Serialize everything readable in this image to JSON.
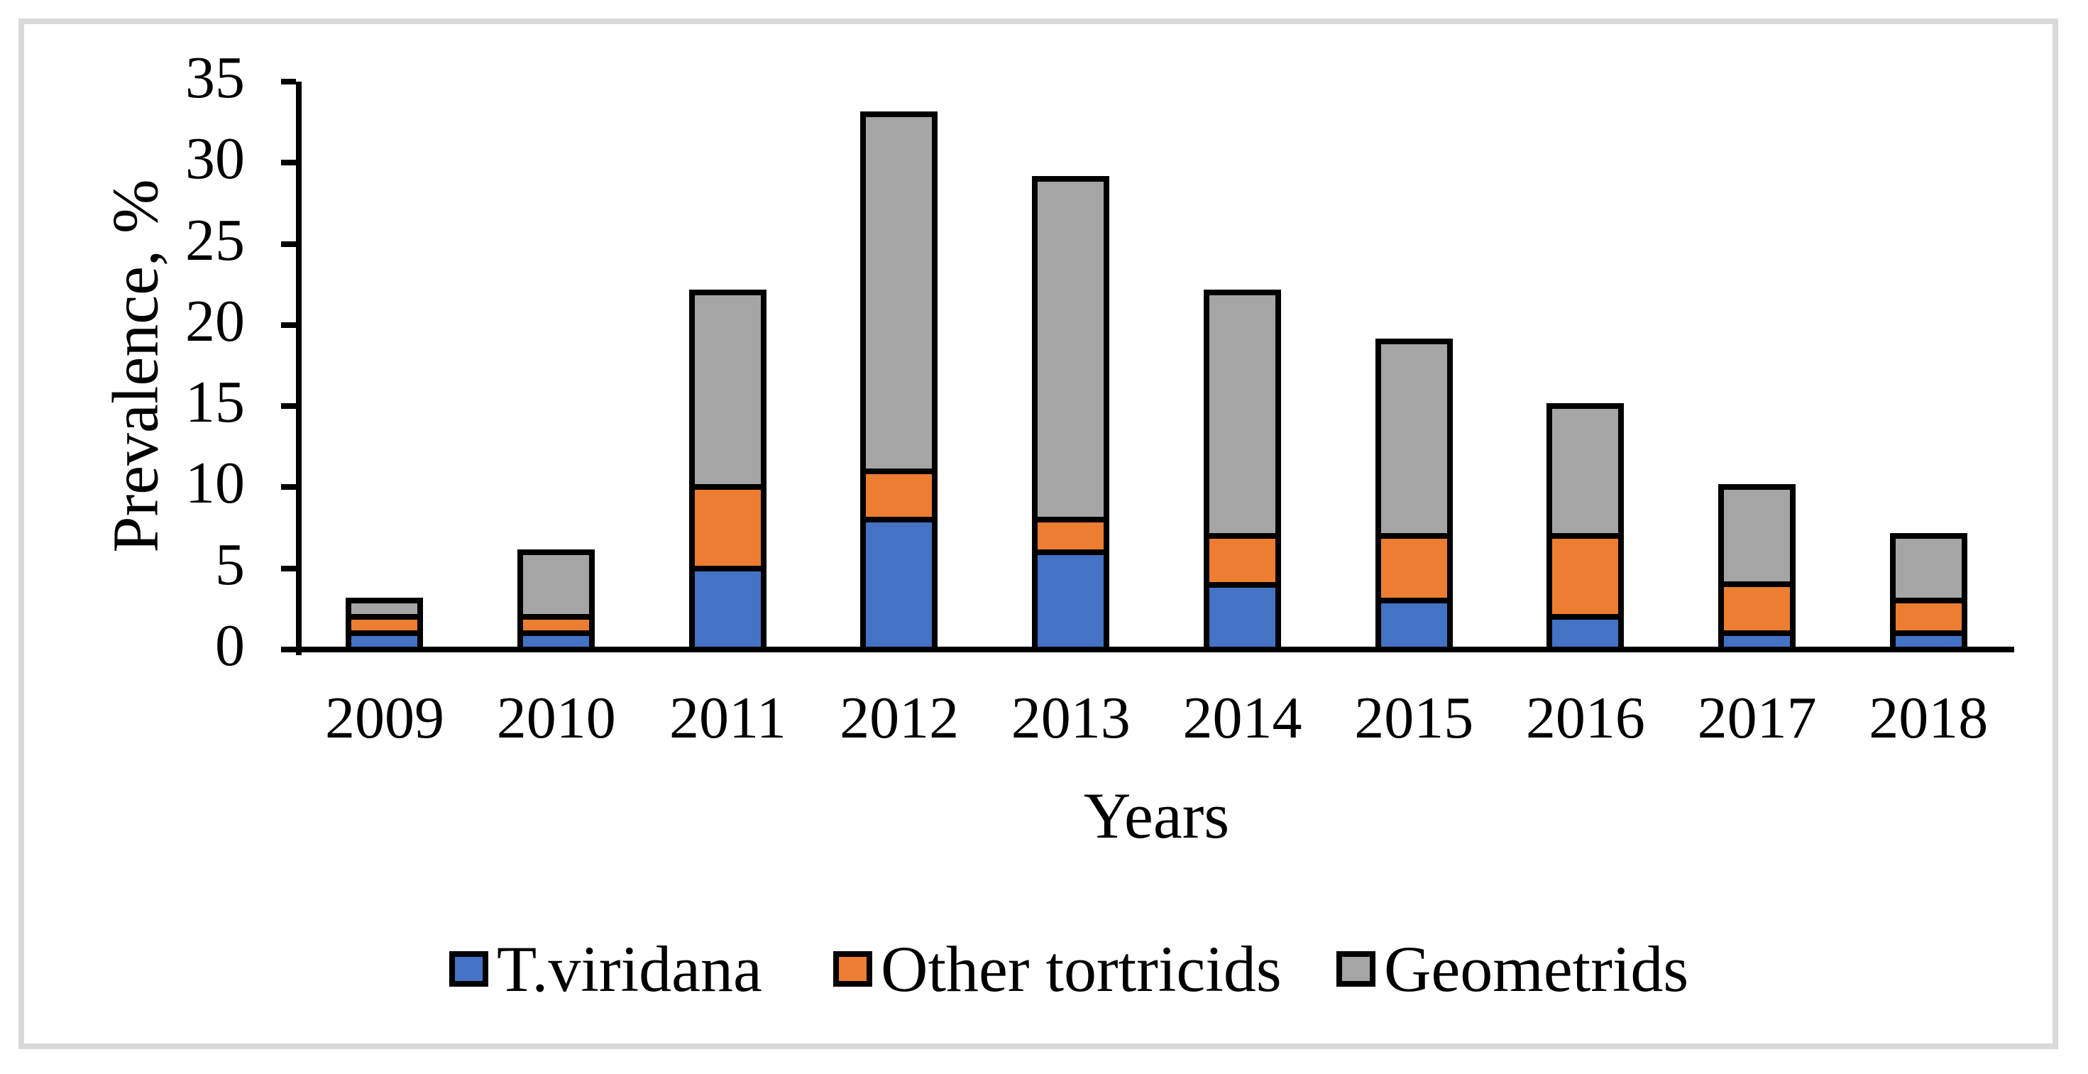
{
  "figure": {
    "background": "#FFFFFF",
    "frame_color": "#D9D9D9"
  },
  "chart_data": {
    "type": "bar",
    "stacked": true,
    "title": "",
    "categories": [
      "2009",
      "2010",
      "2011",
      "2012",
      "2013",
      "2014",
      "2015",
      "2016",
      "2017",
      "2018"
    ],
    "series": [
      {
        "name": "T.viridana",
        "color": "#4472C4",
        "values": [
          1,
          1,
          5,
          8,
          6,
          4,
          3,
          2,
          1,
          1
        ]
      },
      {
        "name": "Other tortricids",
        "color": "#ED7D31",
        "values": [
          1,
          1,
          5,
          3,
          2,
          3,
          4,
          5,
          3,
          2
        ]
      },
      {
        "name": "Geometrids",
        "color": "#A5A5A5",
        "values": [
          1,
          4,
          12,
          22,
          21,
          15,
          12,
          8,
          6,
          4
        ]
      }
    ],
    "stack_totals": [
      3,
      6,
      22,
      33,
      29,
      22,
      19,
      15,
      10,
      7
    ],
    "xlabel": "Years",
    "ylabel": "Prevalence, %",
    "ylim": [
      0,
      35
    ],
    "yticks": [
      0,
      5,
      10,
      15,
      20,
      25,
      30,
      35
    ],
    "grid": false,
    "bar_border_color": "#000000",
    "axis_color": "#000000",
    "legend_position": "bottom",
    "legend_labels": [
      "T.viridana",
      "Other tortricids",
      "Geometrids"
    ]
  }
}
